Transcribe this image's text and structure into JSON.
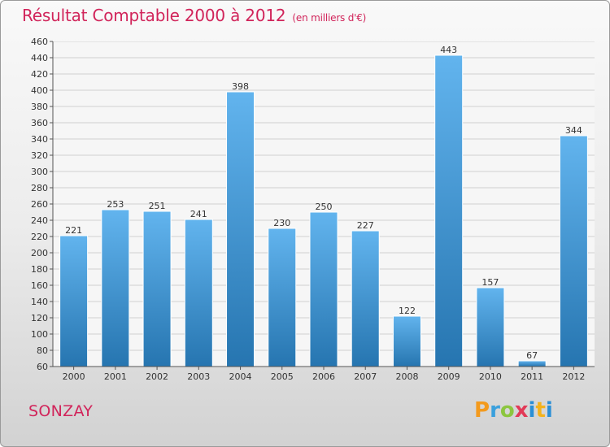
{
  "title": "Résultat Comptable 2000 à 2012",
  "subtitle": "(en milliers d'€)",
  "commune": "SONZAY",
  "logo": {
    "p": "P",
    "r": "r",
    "o": "o",
    "x": "x",
    "i": "i",
    "t": "t",
    "i2": "i"
  },
  "colors": {
    "title": "#d1245a",
    "bar_top": "#62b4ee",
    "bar_bottom": "#2675b0",
    "grid": "#d0d0d0"
  },
  "chart_data": {
    "type": "bar",
    "title": "Résultat Comptable 2000 à 2012",
    "xlabel": "",
    "ylabel": "(en milliers d'€)",
    "categories": [
      "2000",
      "2001",
      "2002",
      "2003",
      "2004",
      "2005",
      "2006",
      "2007",
      "2008",
      "2009",
      "2010",
      "2011",
      "2012"
    ],
    "values": [
      221,
      253,
      251,
      241,
      398,
      230,
      250,
      227,
      122,
      443,
      157,
      67,
      344
    ],
    "ylim": [
      60,
      460
    ],
    "yticks": [
      60,
      80,
      100,
      120,
      140,
      160,
      180,
      200,
      220,
      240,
      260,
      280,
      300,
      320,
      340,
      360,
      380,
      400,
      420,
      440,
      460
    ],
    "grid": true
  }
}
